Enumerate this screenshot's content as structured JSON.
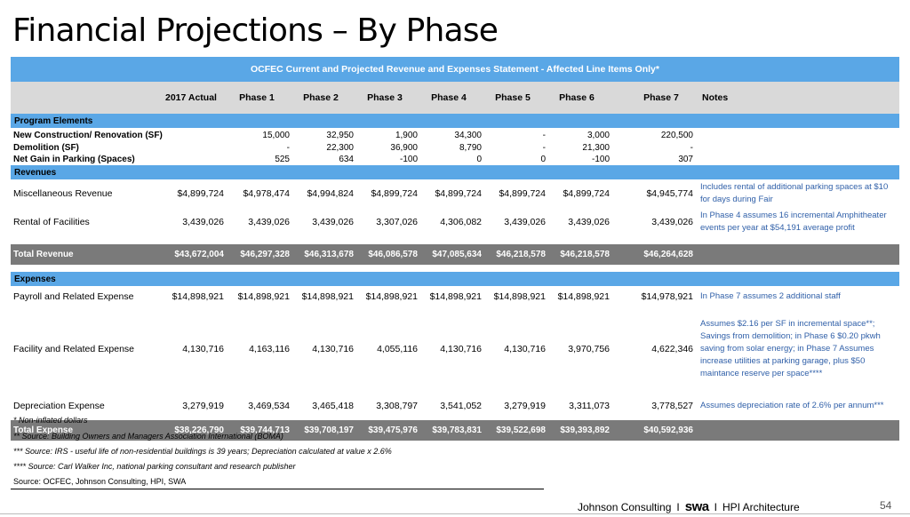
{
  "slide": {
    "title": "Financial Projections – By Phase",
    "page_number": "54"
  },
  "table": {
    "banner": "OCFEC Current and Projected Revenue and Expenses Statement - Affected Line Items Only*",
    "headers": [
      "2017 Actual",
      "Phase 1",
      "Phase 2",
      "Phase 3",
      "Phase 4",
      "Phase 5",
      "Phase 6",
      "Phase 7",
      "Notes"
    ],
    "program_section": "Program Elements",
    "program_rows": [
      {
        "label": "New Construction/ Renovation (SF)",
        "values": [
          "",
          "15,000",
          "32,950",
          "1,900",
          "34,300",
          "-",
          "3,000",
          "220,500"
        ]
      },
      {
        "label": "Demolition (SF)",
        "values": [
          "",
          "-",
          "22,300",
          "36,900",
          "8,790",
          "-",
          "21,300",
          "-"
        ]
      },
      {
        "label": "Net Gain in Parking (Spaces)",
        "values": [
          "",
          "525",
          "634",
          "-100",
          "0",
          "0",
          "-100",
          "307"
        ]
      }
    ],
    "revenue_section": "Revenues",
    "revenue_rows": [
      {
        "label": "Miscellaneous Revenue",
        "values": [
          "$4,899,724",
          "$4,978,474",
          "$4,994,824",
          "$4,899,724",
          "$4,899,724",
          "$4,899,724",
          "$4,899,724",
          "$4,945,774"
        ],
        "note": "Includes rental of additional parking spaces at $10 for  days during Fair"
      },
      {
        "label": "Rental of Facilities",
        "values": [
          "3,439,026",
          "3,439,026",
          "3,439,026",
          "3,307,026",
          "4,306,082",
          "3,439,026",
          "3,439,026",
          "3,439,026"
        ],
        "note": "In Phase 4 assumes 16 incremental Amphitheater events per year at $54,191 average profit"
      }
    ],
    "total_revenue": {
      "label": "Total Revenue",
      "values": [
        "$43,672,004",
        "$46,297,328",
        "$46,313,678",
        "$46,086,578",
        "$47,085,634",
        "$46,218,578",
        "$46,218,578",
        "$46,264,628"
      ]
    },
    "expense_section": "Expenses",
    "expense_rows": [
      {
        "label": "Payroll and Related Expense",
        "values": [
          "$14,898,921",
          "$14,898,921",
          "$14,898,921",
          "$14,898,921",
          "$14,898,921",
          "$14,898,921",
          "$14,898,921",
          "$14,978,921"
        ],
        "note": "In Phase 7 assumes 2 additional staff"
      },
      {
        "label": "Facility and Related Expense",
        "values": [
          "4,130,716",
          "4,163,116",
          "4,130,716",
          "4,055,116",
          "4,130,716",
          "4,130,716",
          "3,970,756",
          "4,622,346"
        ],
        "note": "Assumes $2.16 per SF in incremental space**; Savings from demolition;  in Phase 6 $0.20 pkwh saving from solar energy; in Phase 7 Assumes increase utilities at parking garage, plus $50 maintance reserve per space****"
      },
      {
        "label": "Depreciation Expense",
        "values": [
          "3,279,919",
          "3,469,534",
          "3,465,418",
          "3,308,797",
          "3,541,052",
          "3,279,919",
          "3,311,073",
          "3,778,527"
        ],
        "note": "Assumes depreciation rate of 2.6% per annum***"
      }
    ],
    "total_expense": {
      "label": "Total Expense",
      "values": [
        "$38,226,790",
        "$39,744,713",
        "$39,708,197",
        "$39,475,976",
        "$39,783,831",
        "$39,522,698",
        "$39,393,892",
        "$40,592,936"
      ]
    }
  },
  "footnotes": [
    "* Non-inflated dollars",
    "** Source: Building Owners and Managers Association International (BOMA)",
    "*** Source: IRS - useful life of non-residential buildings is 39 years; Depreciation calculated at value x 2.6%",
    "**** Source: Carl Walker Inc, national parking consultant and research publisher"
  ],
  "source": "Source: OCFEC, Johnson Consulting, HPI, SWA",
  "footer": {
    "left": "Johnson Consulting",
    "sep1": "I",
    "logo": "swa",
    "sep2": "I",
    "right": "HPI Architecture"
  }
}
